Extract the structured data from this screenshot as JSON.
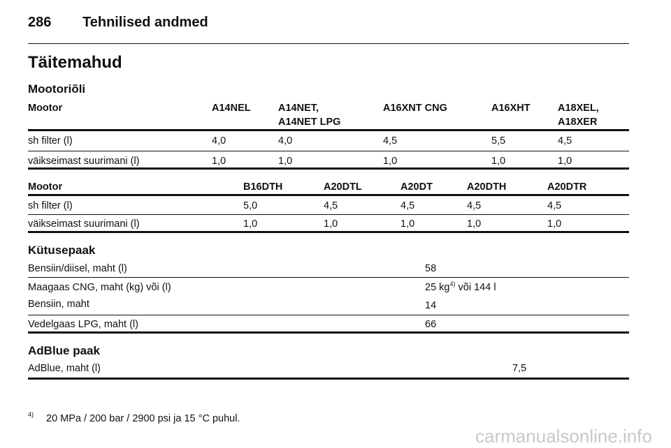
{
  "header": {
    "page": "286",
    "title": "Tehnilised andmed"
  },
  "section": "Täitemahud",
  "engine_oil": {
    "title": "Mootoriõli",
    "table1": {
      "header": [
        "Mootor",
        "A14NEL",
        "A14NET,",
        "A14NET LPG",
        "A16XNT CNG",
        "A16XHT",
        "A18XEL,",
        "A18XER"
      ],
      "rows": [
        [
          "sh filter (l)",
          "4,0",
          "4,0",
          "4,5",
          "5,5",
          "4,5"
        ],
        [
          "väikseimast suurimani (l)",
          "1,0",
          "1,0",
          "1,0",
          "1,0",
          "1,0"
        ]
      ]
    },
    "table2": {
      "header": [
        "Mootor",
        "B16DTH",
        "A20DTL",
        "A20DT",
        "A20DTH",
        "A20DTR"
      ],
      "rows": [
        [
          "sh filter (l)",
          "5,0",
          "4,5",
          "4,5",
          "4,5",
          "4,5"
        ],
        [
          "väikseimast suurimani (l)",
          "1,0",
          "1,0",
          "1,0",
          "1,0",
          "1,0"
        ]
      ]
    }
  },
  "fuel_tank": {
    "title": "Kütusepaak",
    "rows": [
      [
        "Bensiin/diisel, maht (l)",
        "58"
      ],
      [
        "Maagaas CNG, maht (kg) või (l)",
        [
          "25 kg",
          "4)",
          " või 144 l"
        ]
      ],
      [
        "Bensiin, maht",
        "14"
      ],
      [
        "Vedelgaas LPG, maht (l)",
        "66"
      ]
    ]
  },
  "adblue": {
    "title": "AdBlue paak",
    "rows": [
      [
        "AdBlue, maht (l)",
        "7,5"
      ]
    ]
  },
  "footnote": {
    "mark": "4)",
    "text": "20 MPa / 200 bar / 2900 psi ja 15 °C puhul."
  },
  "watermark": "carmanualsonline.info"
}
